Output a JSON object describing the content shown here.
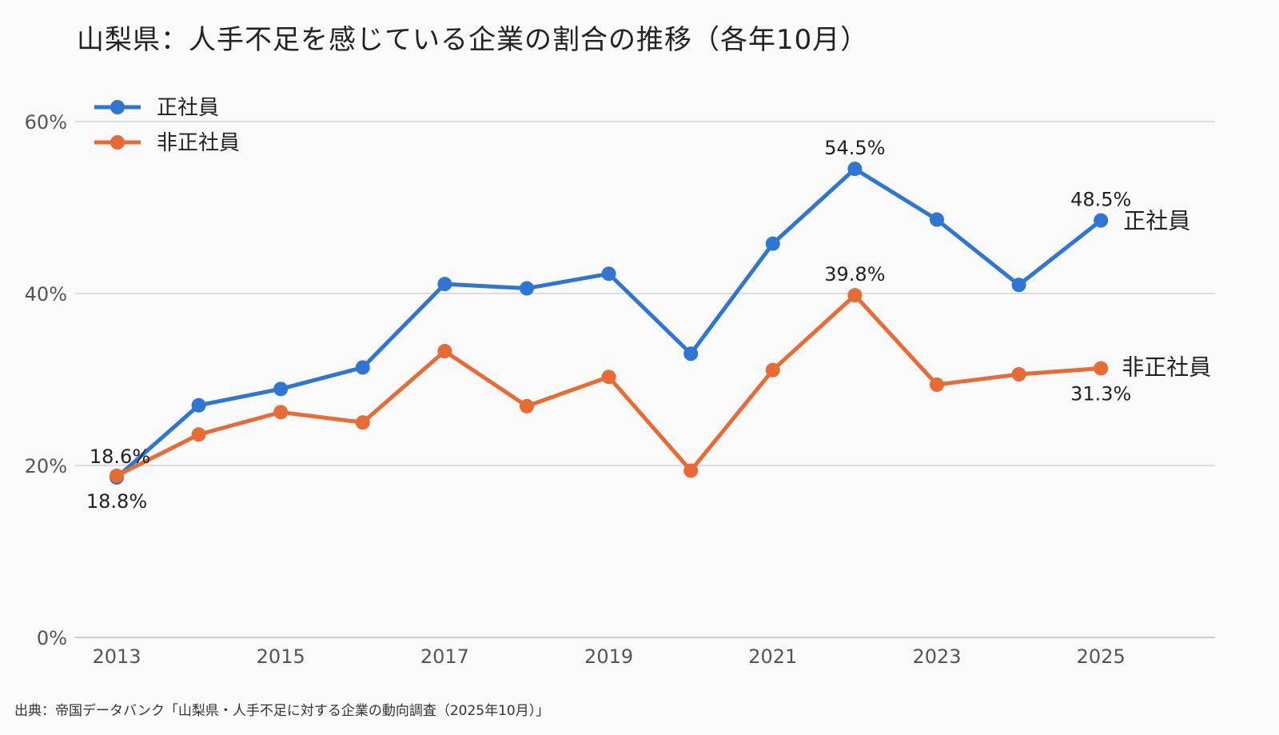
{
  "title": "山梨県：人手不足を感じている企業の割合の推移（各年10月）",
  "source": "出典：帝国データバンク「山梨県・人手不足に対する企業の動向調査（2025年10月）」",
  "colors": {
    "seikei": "#2f76d2",
    "hiseiki": "#e86b35",
    "grid": "#dddddd",
    "axis": "#cccccc"
  },
  "chart_data": {
    "type": "line",
    "x": [
      2013,
      2014,
      2015,
      2016,
      2017,
      2018,
      2019,
      2020,
      2021,
      2022,
      2023,
      2024,
      2025
    ],
    "x_tick_labels": [
      "2013",
      "2015",
      "2017",
      "2019",
      "2021",
      "2023",
      "2025"
    ],
    "y_tick_labels": [
      "0%",
      "20%",
      "40%",
      "60%"
    ],
    "ylim": [
      0,
      60
    ],
    "grid": true,
    "legend_position": "top-left",
    "series": [
      {
        "name": "正社員",
        "values": [
          18.6,
          27.0,
          28.9,
          31.4,
          41.1,
          40.6,
          42.3,
          33.0,
          45.8,
          54.5,
          48.6,
          41.0,
          48.5
        ],
        "labels": {
          "2013": "18.6%",
          "2022": "54.5%",
          "2025": "48.5%"
        },
        "end_label": "正社員"
      },
      {
        "name": "非正社員",
        "values": [
          18.8,
          23.6,
          26.2,
          25.0,
          33.3,
          26.9,
          30.3,
          19.4,
          31.1,
          39.8,
          29.4,
          30.6,
          31.3
        ],
        "labels": {
          "2013": "18.8%",
          "2022": "39.8%",
          "2025": "31.3%"
        },
        "end_label": "非正社員"
      }
    ]
  }
}
